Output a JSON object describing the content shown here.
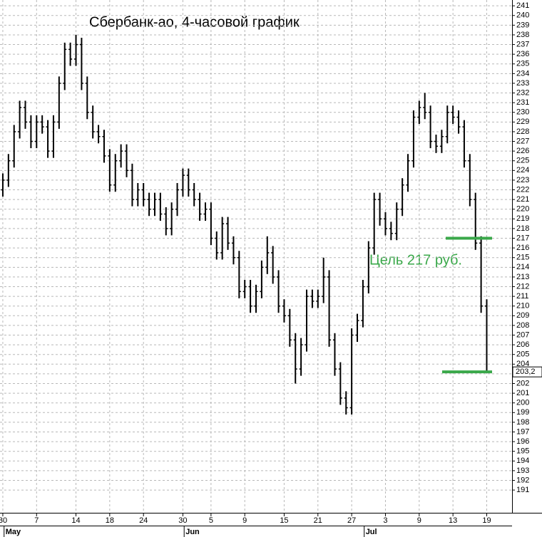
{
  "chart_data": {
    "type": "ohlc",
    "title": "Сбербанк-ао, 4-часовой график",
    "annotation": "Цель 217 руб.",
    "color": "#000000",
    "level_color": "#3aa84a",
    "grid": true,
    "xlim": [
      -0.5,
      90.5
    ],
    "ylim": [
      188.8,
      241.6
    ],
    "xticks": [
      {
        "value": 0,
        "label": "30"
      },
      {
        "value": 6,
        "label": "7"
      },
      {
        "value": 13,
        "label": "14"
      },
      {
        "value": 19,
        "label": "18"
      },
      {
        "value": 25,
        "label": "24"
      },
      {
        "value": 32,
        "label": "30"
      },
      {
        "value": 37,
        "label": "5"
      },
      {
        "value": 43,
        "label": "9"
      },
      {
        "value": 50,
        "label": "15"
      },
      {
        "value": 56,
        "label": "21"
      },
      {
        "value": 62,
        "label": "27"
      },
      {
        "value": 68,
        "label": "3"
      },
      {
        "value": 74,
        "label": "9"
      },
      {
        "value": 80,
        "label": "13"
      },
      {
        "value": 86,
        "label": "19"
      }
    ],
    "months": [
      {
        "value": 2,
        "label": "May"
      },
      {
        "value": 34,
        "label": "Jun"
      },
      {
        "value": 66,
        "label": "Jul"
      }
    ],
    "yticks": [
      191,
      192,
      193,
      194,
      195,
      196,
      197,
      198,
      199,
      200,
      201,
      202,
      203,
      204,
      205,
      206,
      207,
      208,
      209,
      210,
      211,
      212,
      213,
      214,
      215,
      216,
      217,
      218,
      219,
      220,
      221,
      222,
      223,
      224,
      225,
      226,
      227,
      228,
      229,
      230,
      231,
      232,
      233,
      234,
      235,
      236,
      237,
      238,
      239,
      240,
      241
    ],
    "last_price": {
      "value": 203.2,
      "label": "203,2"
    },
    "levels": [
      217,
      203.2
    ],
    "open": [
      222,
      223,
      225,
      228,
      230.5,
      229,
      227,
      229,
      228.5,
      226,
      229,
      233,
      236.5,
      235.5,
      237,
      233,
      230,
      228,
      227.5,
      225.5,
      222.5,
      225,
      226,
      224,
      221,
      222,
      221,
      220,
      221,
      219.5,
      218,
      220,
      222,
      223.5,
      222,
      221,
      219.5,
      220,
      217,
      215.5,
      218.5,
      216.5,
      215,
      211.5,
      212,
      210,
      211.5,
      214,
      215.5,
      213,
      210,
      209,
      206.5,
      203.5,
      206,
      211,
      210.5,
      211,
      213,
      206.5,
      203.5,
      200.5,
      199.5,
      207,
      208.5,
      212,
      216,
      221,
      219,
      218,
      217.5,
      220,
      222.5,
      225,
      229.5,
      230.5,
      230,
      227,
      226.5,
      227.5,
      230,
      229.5,
      228.5,
      225,
      221,
      216.5,
      210
    ],
    "high": [
      223.7,
      225.7,
      228.7,
      231.2,
      231.2,
      229.7,
      229.7,
      229.7,
      229.2,
      229.7,
      233.7,
      237.2,
      237.2,
      238,
      237.7,
      233.7,
      230.7,
      228.7,
      228.2,
      226.2,
      225.7,
      226.7,
      226.7,
      224.7,
      222.7,
      222.7,
      221.7,
      221.7,
      221.7,
      220.2,
      220.7,
      222.7,
      224.2,
      224.2,
      222.7,
      221.7,
      220.7,
      220.7,
      217.7,
      219.2,
      219.2,
      217.2,
      215.7,
      212.7,
      212.7,
      212.2,
      214.7,
      217.2,
      216.2,
      213.7,
      210.7,
      209.7,
      207.2,
      206.7,
      211.7,
      211.7,
      211.7,
      215,
      213.7,
      207.2,
      204.2,
      201.2,
      207.7,
      209.2,
      212.7,
      216.7,
      221.7,
      221.7,
      219.7,
      218.7,
      220.7,
      223.2,
      225.7,
      230.2,
      231.2,
      232,
      230.7,
      227.7,
      228.2,
      230.7,
      230.7,
      230.2,
      229.2,
      225.7,
      221.7,
      217.2,
      210.7
    ],
    "low": [
      221.3,
      222.3,
      224.3,
      227.3,
      228.3,
      226.3,
      226.3,
      227.8,
      225.3,
      225.3,
      228.3,
      232.3,
      234.8,
      234.8,
      232.3,
      229.3,
      227.3,
      226.8,
      224.8,
      221.8,
      221.8,
      224.3,
      223.3,
      220.3,
      220.3,
      220.3,
      219.3,
      219.3,
      218.8,
      217.3,
      217.3,
      219.3,
      221.3,
      221.3,
      220.3,
      218.8,
      218.8,
      216.3,
      214.8,
      214.8,
      215.8,
      214.3,
      210.8,
      210.8,
      209.3,
      209.3,
      210.8,
      213.3,
      212.3,
      209.3,
      208.3,
      205.8,
      202,
      202.8,
      205.3,
      209.8,
      209.8,
      210.3,
      205.8,
      202.8,
      199.8,
      198.8,
      198.8,
      206.3,
      207.8,
      211.3,
      215.3,
      218.3,
      217.3,
      216.8,
      216.8,
      219.3,
      221.8,
      224.3,
      228.8,
      229.3,
      226.3,
      225.8,
      225.8,
      226.8,
      228.8,
      227.8,
      224.3,
      220.3,
      215.8,
      209.3,
      203.2
    ],
    "close": [
      223,
      225,
      228,
      230.5,
      229,
      227,
      229,
      228.5,
      226,
      229,
      233,
      236.5,
      235.5,
      237,
      233,
      230,
      228,
      227.5,
      225.5,
      222.5,
      225,
      226,
      224,
      221,
      222,
      221,
      220,
      221,
      219.5,
      218,
      220,
      222,
      223.5,
      222,
      221,
      219.5,
      220,
      217,
      215.5,
      218.5,
      216.5,
      215,
      211.5,
      212,
      210,
      211.5,
      214,
      215.5,
      213,
      210,
      209,
      206.5,
      203.5,
      206,
      211,
      210.5,
      211,
      213,
      206.5,
      203.5,
      200.5,
      199.5,
      207,
      208.5,
      212,
      216,
      221,
      219,
      218,
      217.5,
      220,
      222.5,
      225,
      229.5,
      230.5,
      230,
      227,
      226.5,
      227.5,
      230,
      229.5,
      228.5,
      225,
      221,
      216.5,
      210,
      203.2
    ]
  }
}
